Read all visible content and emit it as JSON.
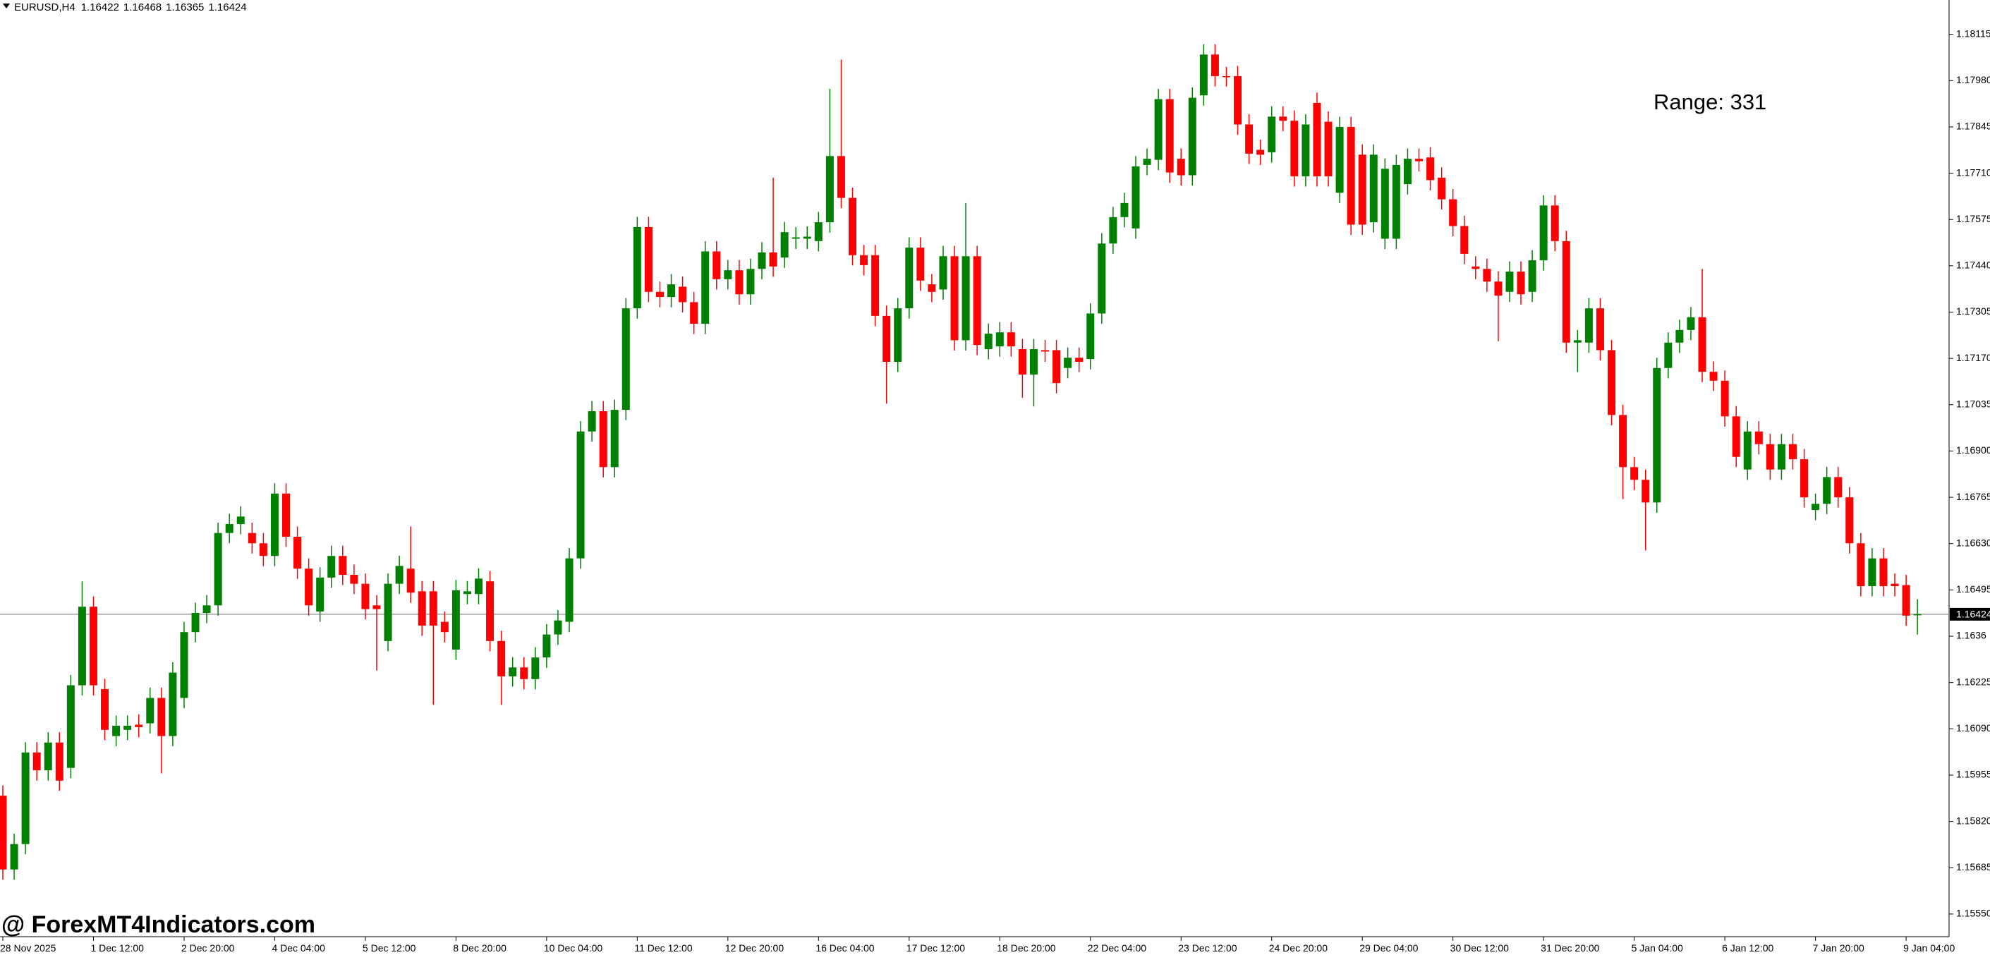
{
  "chart_data": {
    "type": "candlestick",
    "title": "EURUSD,H4",
    "ohlc_readout": [
      1.16422,
      1.16468,
      1.16365,
      1.16424
    ],
    "annotation": "Range: 331",
    "watermark": "@ ForexMT4Indicators.com",
    "current_price": 1.16424,
    "up_color": "#008000",
    "down_color": "#ff0000",
    "ylim": [
      1.15484,
      1.18215
    ],
    "yticks": [
      {
        "value": 1.1555,
        "label": "1.15550"
      },
      1.15685,
      {
        "value": 1.1582,
        "label": "1.15820"
      },
      1.15955,
      {
        "value": 1.1609,
        "label": "1.16090"
      },
      1.16225,
      1.1636,
      1.16495,
      {
        "value": 1.1663,
        "label": "1.16630"
      },
      1.16765,
      {
        "value": 1.169,
        "label": "1.16900"
      },
      1.17035,
      {
        "value": 1.1717,
        "label": "1.17170"
      },
      1.17305,
      {
        "value": 1.1744,
        "label": "1.17440"
      },
      1.17575,
      {
        "value": 1.1771,
        "label": "1.17710"
      },
      1.17845,
      {
        "value": 1.1798,
        "label": "1.17980"
      },
      1.18115
    ],
    "categories": [
      "28 Nov 2025",
      null,
      null,
      null,
      null,
      null,
      null,
      null,
      "1 Dec 12:00",
      null,
      null,
      null,
      null,
      null,
      null,
      null,
      "2 Dec 20:00",
      null,
      null,
      null,
      null,
      null,
      null,
      null,
      "4 Dec 04:00",
      null,
      null,
      null,
      null,
      null,
      null,
      null,
      "5 Dec 12:00",
      null,
      null,
      null,
      null,
      null,
      null,
      null,
      "8 Dec 20:00",
      null,
      null,
      null,
      null,
      null,
      null,
      null,
      "10 Dec 04:00",
      null,
      null,
      null,
      null,
      null,
      null,
      null,
      "11 Dec 12:00",
      null,
      null,
      null,
      null,
      null,
      null,
      null,
      "12 Dec 20:00",
      null,
      null,
      null,
      null,
      null,
      null,
      null,
      "16 Dec 04:00",
      null,
      null,
      null,
      null,
      null,
      null,
      null,
      "17 Dec 12:00",
      null,
      null,
      null,
      null,
      null,
      null,
      null,
      "18 Dec 20:00",
      null,
      null,
      null,
      null,
      null,
      null,
      null,
      "22 Dec 04:00",
      null,
      null,
      null,
      null,
      null,
      null,
      null,
      "23 Dec 12:00",
      null,
      null,
      null,
      null,
      null,
      null,
      null,
      "24 Dec 20:00",
      null,
      null,
      null,
      null,
      null,
      null,
      null,
      "29 Dec 04:00",
      null,
      null,
      null,
      null,
      null,
      null,
      null,
      "30 Dec 12:00",
      null,
      null,
      null,
      null,
      null,
      null,
      null,
      "31 Dec 20:00",
      null,
      null,
      null,
      null,
      null,
      null,
      null,
      "5 Jan 04:00",
      null,
      null,
      null,
      null,
      null,
      null,
      null,
      "6 Jan 12:00",
      null,
      null,
      null,
      null,
      null,
      null,
      null,
      "7 Jan 20:00",
      null,
      null,
      null,
      null,
      null,
      null,
      null,
      "9 Jan 04:00",
      null
    ],
    "open": [
      1.15895,
      1.1568,
      1.15754,
      1.16021,
      1.15969,
      1.1605,
      1.15976,
      1.16217,
      1.16446,
      1.16206,
      1.16069,
      1.16087,
      1.16102,
      1.16106,
      1.1618,
      1.16069,
      1.1618,
      1.16372,
      1.16428,
      1.1645,
      1.16661,
      1.16687,
      1.16661,
      1.16631,
      1.16594,
      1.16776,
      1.1665,
      1.16557,
      1.16432,
      1.16531,
      1.16594,
      1.16539,
      1.16513,
      1.1645,
      1.16346,
      1.16513,
      1.16557,
      1.16491,
      1.16491,
      1.16402,
      1.16321,
      1.16483,
      1.16483,
      1.1652,
      1.16346,
      1.16243,
      1.16269,
      1.16235,
      1.16298,
      1.16365,
      1.16402,
      1.16587,
      1.16957,
      1.17016,
      1.16853,
      1.1702,
      1.17316,
      1.17553,
      1.17364,
      1.17349,
      1.17379,
      1.17334,
      1.17271,
      1.17482,
      1.17401,
      1.17427,
      1.17357,
      1.17431,
      1.17479,
      1.17464,
      1.17519,
      1.17519,
      1.17512,
      1.17567,
      1.1776,
      1.17638,
      1.17471,
      1.17471,
      1.17294,
      1.1716,
      1.17316,
      1.17493,
      1.17386,
      1.17371,
      1.17468,
      1.17223,
      1.17468,
      1.17197,
      1.17205,
      1.17246,
      1.17197,
      1.17123,
      1.17194,
      1.17194,
      1.17142,
      1.17172,
      1.17168,
      1.17301,
      1.17505,
      1.17582,
      1.17549,
      1.17734,
      1.17749,
      1.17926,
      1.17752,
      1.17704,
      1.17937,
      1.18056,
      1.17993,
      1.17993,
      1.17852,
      1.17778,
      1.17771,
      1.17875,
      1.17863,
      1.17701,
      1.17915,
      1.1786,
      1.17653,
      1.17845,
      1.17764,
      1.17567,
      1.17519,
      1.17519,
      1.17678,
      1.17752,
      1.17756,
      1.17697,
      1.17634,
      1.17556,
      1.17438,
      1.17431,
      1.17394,
      1.17364,
      1.17423,
      1.17364,
      1.17456,
      1.17616,
      1.17512,
      1.17216,
      1.17216,
      1.17316,
      1.17194,
      1.17005,
      1.16853,
      1.16816,
      1.1675,
      1.17142,
      1.17216,
      1.17253,
      1.1729,
      1.17131,
      1.17105,
      1.17001,
      1.16846,
      1.16957,
      1.1692,
      1.16846,
      1.1692,
      1.16876,
      1.16728,
      1.16746,
      1.16824,
      1.16765,
      1.16631,
      1.16506,
      1.16587,
      1.16513,
      1.16509,
      1.16422
    ],
    "high": [
      1.15925,
      1.15784,
      1.16051,
      1.16051,
      1.1608,
      1.1608,
      1.16247,
      1.1652,
      1.16476,
      1.16236,
      1.16129,
      1.16129,
      1.16132,
      1.1621,
      1.1621,
      1.16284,
      1.16402,
      1.16458,
      1.1648,
      1.16691,
      1.16717,
      1.16739,
      1.16691,
      1.16661,
      1.16806,
      1.16806,
      1.1668,
      1.16587,
      1.16561,
      1.16624,
      1.16624,
      1.16569,
      1.16543,
      1.1648,
      1.16543,
      1.16595,
      1.1668,
      1.16521,
      1.16521,
      1.16432,
      1.16524,
      1.16521,
      1.16558,
      1.1655,
      1.16376,
      1.16299,
      1.16299,
      1.16328,
      1.16395,
      1.16436,
      1.16617,
      1.16987,
      1.17046,
      1.17046,
      1.1705,
      1.17346,
      1.17583,
      1.17583,
      1.17394,
      1.17416,
      1.17409,
      1.17364,
      1.17512,
      1.17512,
      1.17457,
      1.17457,
      1.17461,
      1.17509,
      1.17697,
      1.17568,
      1.17553,
      1.17555,
      1.17597,
      1.17956,
      1.18041,
      1.17668,
      1.17501,
      1.17501,
      1.17324,
      1.17346,
      1.17523,
      1.17523,
      1.17416,
      1.17498,
      1.17498,
      1.17623,
      1.17498,
      1.17272,
      1.17276,
      1.17276,
      1.17227,
      1.17227,
      1.17224,
      1.17224,
      1.17202,
      1.17202,
      1.17331,
      1.17535,
      1.17612,
      1.17653,
      1.1776,
      1.17782,
      1.17956,
      1.17956,
      1.17782,
      1.1796,
      1.18086,
      1.18086,
      1.1802,
      1.18023,
      1.17882,
      1.17808,
      1.17905,
      1.17905,
      1.17893,
      1.17882,
      1.17945,
      1.1789,
      1.17875,
      1.17875,
      1.17794,
      1.17794,
      1.17753,
      1.17764,
      1.17782,
      1.17782,
      1.17786,
      1.17727,
      1.17664,
      1.17586,
      1.17468,
      1.17461,
      1.17424,
      1.17453,
      1.17453,
      1.17486,
      1.17646,
      1.17646,
      1.17542,
      1.17253,
      1.17346,
      1.17346,
      1.17224,
      1.17035,
      1.16883,
      1.16846,
      1.17172,
      1.17246,
      1.17283,
      1.1732,
      1.17431,
      1.17161,
      1.17135,
      1.17031,
      1.16987,
      1.16987,
      1.1695,
      1.1695,
      1.1695,
      1.16906,
      1.16776,
      1.16854,
      1.16854,
      1.16795,
      1.16661,
      1.16617,
      1.16617,
      1.16543,
      1.16539,
      1.16468
    ],
    "low": [
      1.1565,
      1.1565,
      1.15724,
      1.15939,
      1.15939,
      1.15909,
      1.15946,
      1.16187,
      1.16187,
      1.16057,
      1.16039,
      1.16057,
      1.16065,
      1.16076,
      1.1596,
      1.16039,
      1.1615,
      1.16342,
      1.16398,
      1.1642,
      1.16631,
      1.16657,
      1.16601,
      1.16564,
      1.16564,
      1.1662,
      1.16527,
      1.1642,
      1.16402,
      1.16501,
      1.16509,
      1.16483,
      1.16409,
      1.1626,
      1.16316,
      1.16483,
      1.16457,
      1.16361,
      1.1616,
      1.16342,
      1.16291,
      1.16453,
      1.16453,
      1.16316,
      1.1616,
      1.16213,
      1.16205,
      1.16205,
      1.16268,
      1.16335,
      1.16372,
      1.16557,
      1.16927,
      1.16823,
      1.16823,
      1.1699,
      1.17286,
      1.17334,
      1.17319,
      1.17319,
      1.17304,
      1.17241,
      1.17241,
      1.17371,
      1.17371,
      1.17327,
      1.17327,
      1.17401,
      1.17408,
      1.17434,
      1.17489,
      1.17489,
      1.17482,
      1.17537,
      1.17608,
      1.17441,
      1.17412,
      1.17264,
      1.17038,
      1.1713,
      1.17286,
      1.17367,
      1.17334,
      1.17341,
      1.17193,
      1.17193,
      1.17179,
      1.17167,
      1.17175,
      1.17175,
      1.17055,
      1.1703,
      1.1716,
      1.17068,
      1.17112,
      1.1713,
      1.17138,
      1.17271,
      1.17475,
      1.17552,
      1.17519,
      1.17704,
      1.17719,
      1.17682,
      1.17674,
      1.17674,
      1.17907,
      1.17963,
      1.17963,
      1.17822,
      1.17737,
      1.17734,
      1.17741,
      1.17833,
      1.17671,
      1.17671,
      1.17671,
      1.17671,
      1.17623,
      1.1753,
      1.1753,
      1.17537,
      1.17489,
      1.17489,
      1.17648,
      1.17715,
      1.1766,
      1.17604,
      1.17526,
      1.17445,
      1.17401,
      1.17364,
      1.1722,
      1.17334,
      1.17327,
      1.17334,
      1.17426,
      1.17482,
      1.17186,
      1.1713,
      1.17186,
      1.17164,
      1.16975,
      1.1676,
      1.16786,
      1.1661,
      1.1672,
      1.17112,
      1.17186,
      1.17223,
      1.17101,
      1.17075,
      1.16971,
      1.16853,
      1.16816,
      1.1689,
      1.16816,
      1.16816,
      1.16846,
      1.16735,
      1.16698,
      1.16716,
      1.16735,
      1.16601,
      1.16476,
      1.16476,
      1.16476,
      1.16476,
      1.1639,
      1.16365
    ],
    "close": [
      1.1568,
      1.15754,
      1.16021,
      1.15969,
      1.1605,
      1.15939,
      1.16217,
      1.16446,
      1.16217,
      1.16087,
      1.16099,
      1.16099,
      1.16095,
      1.1618,
      1.16069,
      1.16254,
      1.16372,
      1.16428,
      1.1645,
      1.16661,
      1.16687,
      1.16709,
      1.16631,
      1.16594,
      1.16776,
      1.1665,
      1.16557,
      1.1645,
      1.16531,
      1.16594,
      1.16539,
      1.16513,
      1.16439,
      1.16439,
      1.16513,
      1.16565,
      1.16487,
      1.16391,
      1.16391,
      1.16372,
      1.16494,
      1.16491,
      1.16528,
      1.16346,
      1.16243,
      1.16269,
      1.16235,
      1.16298,
      1.16365,
      1.16406,
      1.16587,
      1.16957,
      1.17016,
      1.16853,
      1.1702,
      1.17316,
      1.17553,
      1.17364,
      1.17349,
      1.17386,
      1.17334,
      1.17271,
      1.17482,
      1.17401,
      1.17427,
      1.17357,
      1.17431,
      1.17479,
      1.17438,
      1.17538,
      1.17523,
      1.17525,
      1.17567,
      1.1776,
      1.17638,
      1.17471,
      1.17442,
      1.17294,
      1.1716,
      1.17316,
      1.17493,
      1.17397,
      1.17364,
      1.17468,
      1.17223,
      1.17468,
      1.17209,
      1.17242,
      1.17246,
      1.17205,
      1.17123,
      1.17197,
      1.1719,
      1.17098,
      1.17172,
      1.1716,
      1.17301,
      1.17505,
      1.17582,
      1.17623,
      1.1773,
      1.17752,
      1.17926,
      1.17712,
      1.17704,
      1.1793,
      1.18056,
      1.17993,
      1.1799,
      1.17852,
      1.17767,
      1.17764,
      1.17875,
      1.17863,
      1.17701,
      1.17852,
      1.17701,
      1.17701,
      1.17845,
      1.1756,
      1.1756,
      1.17764,
      1.17723,
      1.17734,
      1.17752,
      1.17745,
      1.1769,
      1.17634,
      1.17556,
      1.17475,
      1.17431,
      1.17394,
      1.17353,
      1.17423,
      1.17357,
      1.17456,
      1.17616,
      1.17512,
      1.17216,
      1.17223,
      1.17316,
      1.17194,
      1.17005,
      1.16853,
      1.16816,
      1.1675,
      1.17142,
      1.17216,
      1.17253,
      1.1729,
      1.17131,
      1.17105,
      1.17001,
      1.16883,
      1.16957,
      1.1692,
      1.16846,
      1.1692,
      1.16876,
      1.16765,
      1.16746,
      1.16824,
      1.16765,
      1.16631,
      1.16506,
      1.16587,
      1.16506,
      1.16506,
      1.1642,
      1.16424
    ]
  }
}
